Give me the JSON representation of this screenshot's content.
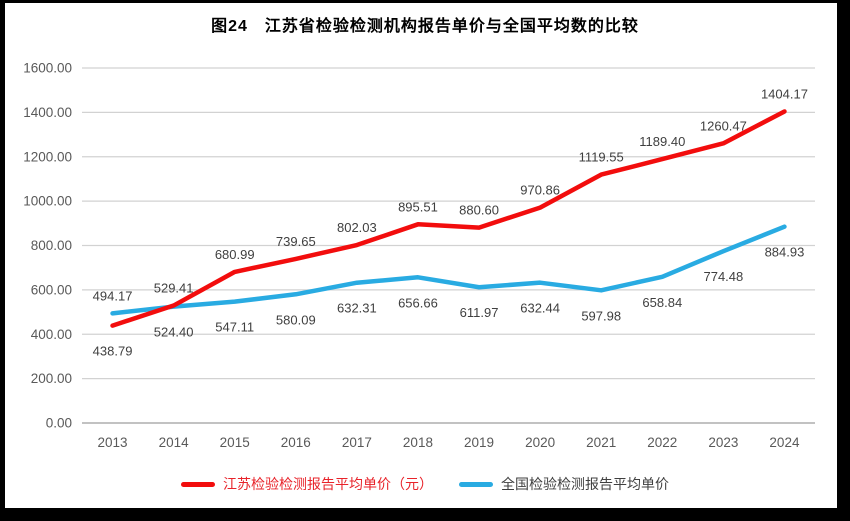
{
  "chart_data": {
    "type": "line",
    "title": "图24　江苏省检验检测机构报告单价与全国平均数的比较",
    "categories": [
      "2013",
      "2014",
      "2015",
      "2016",
      "2017",
      "2018",
      "2019",
      "2020",
      "2021",
      "2022",
      "2023",
      "2024"
    ],
    "series": [
      {
        "id": "jiangsu",
        "name": "江苏检验检测报告平均单价（元）",
        "color": "#f20d0d",
        "legend_text_color": "#e8232a",
        "values": [
          438.79,
          529.41,
          680.99,
          739.65,
          802.03,
          895.51,
          880.6,
          970.86,
          1119.55,
          1189.4,
          1260.47,
          1404.17
        ],
        "data_label_position": "above",
        "data_label_overrides": {
          "0": "below"
        }
      },
      {
        "id": "national",
        "name": "全国检验检测报告平均单价",
        "color": "#29abe2",
        "legend_text_color": "#3f3f3f",
        "values": [
          494.17,
          524.4,
          547.11,
          580.09,
          632.31,
          656.66,
          611.97,
          632.44,
          597.98,
          658.84,
          774.48,
          884.93
        ],
        "data_label_position": "below",
        "data_label_overrides": {
          "0": "above"
        }
      }
    ],
    "ylim": [
      0,
      1600
    ],
    "ytick_step": 200,
    "ytick_format_decimals": 2,
    "grid": true,
    "legend_position": "bottom",
    "xlabel": "",
    "ylabel": ""
  },
  "style": {
    "gridline_color": "#d2d2d2",
    "axis_line_color": "#aeaeae",
    "tick_label_color": "#595959",
    "data_label_color": "#3f3f3f"
  }
}
